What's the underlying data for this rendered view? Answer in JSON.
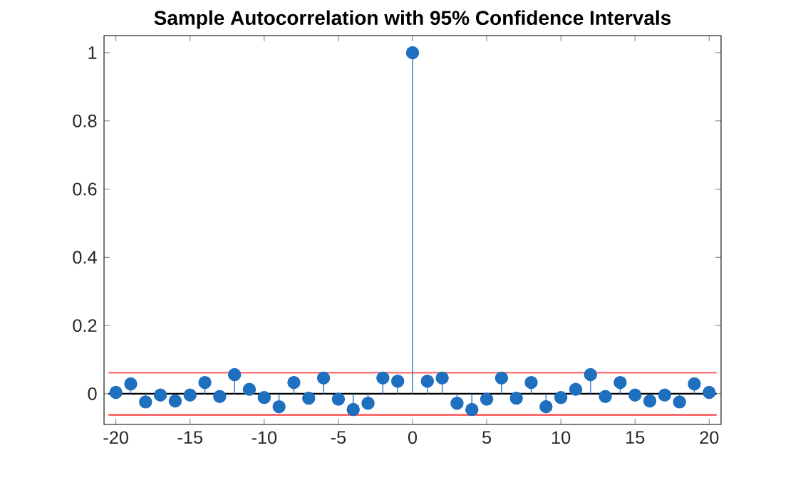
{
  "chart_data": {
    "type": "lollipop",
    "title": "Sample Autocorrelation with 95% Confidence Intervals",
    "x": [
      -20,
      -19,
      -18,
      -17,
      -16,
      -15,
      -14,
      -13,
      -12,
      -11,
      -10,
      -9,
      -8,
      -7,
      -6,
      -5,
      -4,
      -3,
      -2,
      -1,
      0,
      1,
      2,
      3,
      4,
      5,
      6,
      7,
      8,
      9,
      10,
      11,
      12,
      13,
      14,
      15,
      16,
      17,
      18,
      19,
      20
    ],
    "values": [
      0.004,
      0.029,
      -0.024,
      -0.004,
      -0.021,
      -0.004,
      0.033,
      -0.008,
      0.056,
      0.013,
      -0.011,
      -0.038,
      0.033,
      -0.013,
      0.046,
      -0.016,
      -0.046,
      -0.028,
      0.046,
      0.037,
      1,
      0.037,
      0.046,
      -0.028,
      -0.046,
      -0.016,
      0.046,
      -0.013,
      0.033,
      -0.038,
      -0.011,
      0.013,
      0.056,
      -0.008,
      0.033,
      -0.004,
      -0.021,
      -0.004,
      -0.024,
      0.029,
      0.004
    ],
    "color": "#1f6fbf",
    "marker": "circle",
    "xlim": [
      -20.8,
      20.8
    ],
    "ylim": [
      -0.09,
      1.05
    ],
    "xticks": [
      -20,
      -15,
      -10,
      -5,
      0,
      5,
      10,
      15,
      20
    ],
    "yticks": [
      0,
      0.2,
      0.4,
      0.6,
      0.8,
      1
    ],
    "ref_lines": [
      {
        "axis": "y",
        "value": 0.062,
        "color": "#ff7b7b"
      },
      {
        "axis": "y",
        "value": -0.062,
        "color": "#ff4040"
      },
      {
        "axis": "y",
        "value": 0,
        "color": "#000000"
      }
    ],
    "grid": false
  }
}
